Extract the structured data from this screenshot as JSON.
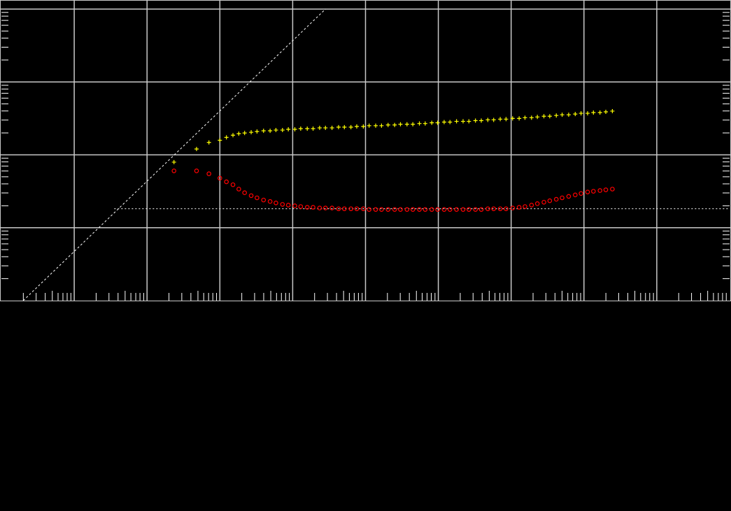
{
  "chart_data": {
    "type": "scatter",
    "xscale": "log",
    "yscale": "log",
    "xlim_log10": [
      -3,
      7
    ],
    "ylim_log10": [
      -2,
      2
    ],
    "grid": true,
    "title": "",
    "xlabel": "",
    "ylabel": "",
    "colors": {
      "background": "#000000",
      "grid": "#c8c8c8",
      "reference": "#ffffff",
      "series_plus": "#ffff00",
      "series_circle": "#ff0000"
    },
    "series": [
      {
        "marker": "plus",
        "color": "#ffff00",
        "x_log10": [
          -0.63,
          -0.32,
          -0.15,
          0.0,
          0.09,
          0.18,
          0.26,
          0.34,
          0.43,
          0.51,
          0.6,
          0.69,
          0.77,
          0.86,
          0.94,
          1.03,
          1.11,
          1.2,
          1.28,
          1.37,
          1.45,
          1.54,
          1.63,
          1.71,
          1.8,
          1.88,
          1.97,
          2.05,
          2.14,
          2.22,
          2.31,
          2.4,
          2.48,
          2.57,
          2.65,
          2.74,
          2.82,
          2.91,
          2.99,
          3.08,
          3.16,
          3.25,
          3.34,
          3.42,
          3.51,
          3.59,
          3.68,
          3.76,
          3.85,
          3.93,
          4.02,
          4.11,
          4.19,
          4.28,
          4.36,
          4.45,
          4.53,
          4.62,
          4.7,
          4.79,
          4.88,
          4.96,
          5.05,
          5.13,
          5.22,
          5.3,
          5.39
        ],
        "y_log10": [
          -0.1,
          0.08,
          0.17,
          0.2,
          0.24,
          0.27,
          0.29,
          0.3,
          0.31,
          0.32,
          0.33,
          0.33,
          0.34,
          0.34,
          0.35,
          0.35,
          0.36,
          0.36,
          0.36,
          0.37,
          0.37,
          0.37,
          0.38,
          0.38,
          0.38,
          0.39,
          0.39,
          0.4,
          0.4,
          0.4,
          0.41,
          0.41,
          0.42,
          0.42,
          0.42,
          0.43,
          0.43,
          0.44,
          0.44,
          0.45,
          0.45,
          0.46,
          0.46,
          0.46,
          0.47,
          0.47,
          0.48,
          0.48,
          0.49,
          0.49,
          0.5,
          0.5,
          0.51,
          0.51,
          0.52,
          0.53,
          0.53,
          0.54,
          0.55,
          0.55,
          0.56,
          0.57,
          0.57,
          0.58,
          0.58,
          0.59,
          0.6
        ]
      },
      {
        "marker": "circle",
        "color": "#ff0000",
        "x_log10": [
          -0.63,
          -0.32,
          -0.15,
          0.0,
          0.09,
          0.18,
          0.26,
          0.34,
          0.43,
          0.51,
          0.6,
          0.69,
          0.77,
          0.86,
          0.94,
          1.03,
          1.11,
          1.2,
          1.28,
          1.37,
          1.45,
          1.54,
          1.63,
          1.71,
          1.8,
          1.88,
          1.97,
          2.05,
          2.14,
          2.22,
          2.31,
          2.4,
          2.48,
          2.57,
          2.65,
          2.74,
          2.82,
          2.91,
          2.99,
          3.08,
          3.16,
          3.25,
          3.34,
          3.42,
          3.51,
          3.59,
          3.68,
          3.76,
          3.85,
          3.93,
          4.02,
          4.11,
          4.19,
          4.28,
          4.36,
          4.45,
          4.53,
          4.62,
          4.7,
          4.79,
          4.88,
          4.96,
          5.05,
          5.13,
          5.22,
          5.3,
          5.39
        ],
        "y_log10": [
          -0.22,
          -0.22,
          -0.26,
          -0.32,
          -0.37,
          -0.41,
          -0.47,
          -0.52,
          -0.56,
          -0.59,
          -0.62,
          -0.64,
          -0.66,
          -0.68,
          -0.69,
          -0.7,
          -0.71,
          -0.72,
          -0.72,
          -0.73,
          -0.73,
          -0.73,
          -0.74,
          -0.74,
          -0.74,
          -0.74,
          -0.74,
          -0.75,
          -0.75,
          -0.75,
          -0.75,
          -0.75,
          -0.75,
          -0.75,
          -0.75,
          -0.75,
          -0.75,
          -0.75,
          -0.75,
          -0.75,
          -0.75,
          -0.75,
          -0.75,
          -0.75,
          -0.75,
          -0.75,
          -0.74,
          -0.74,
          -0.74,
          -0.74,
          -0.73,
          -0.72,
          -0.71,
          -0.69,
          -0.67,
          -0.65,
          -0.63,
          -0.61,
          -0.59,
          -0.57,
          -0.55,
          -0.53,
          -0.51,
          -0.5,
          -0.49,
          -0.48,
          -0.47
        ]
      }
    ],
    "reference_lines": [
      {
        "kind": "diagonal",
        "from_log10": [
          -2.7,
          -2.0
        ],
        "to_log10": [
          1.45,
          2.0
        ]
      },
      {
        "kind": "horizontal",
        "y_log10": -0.74,
        "x_start_log10": -1.45
      }
    ]
  }
}
